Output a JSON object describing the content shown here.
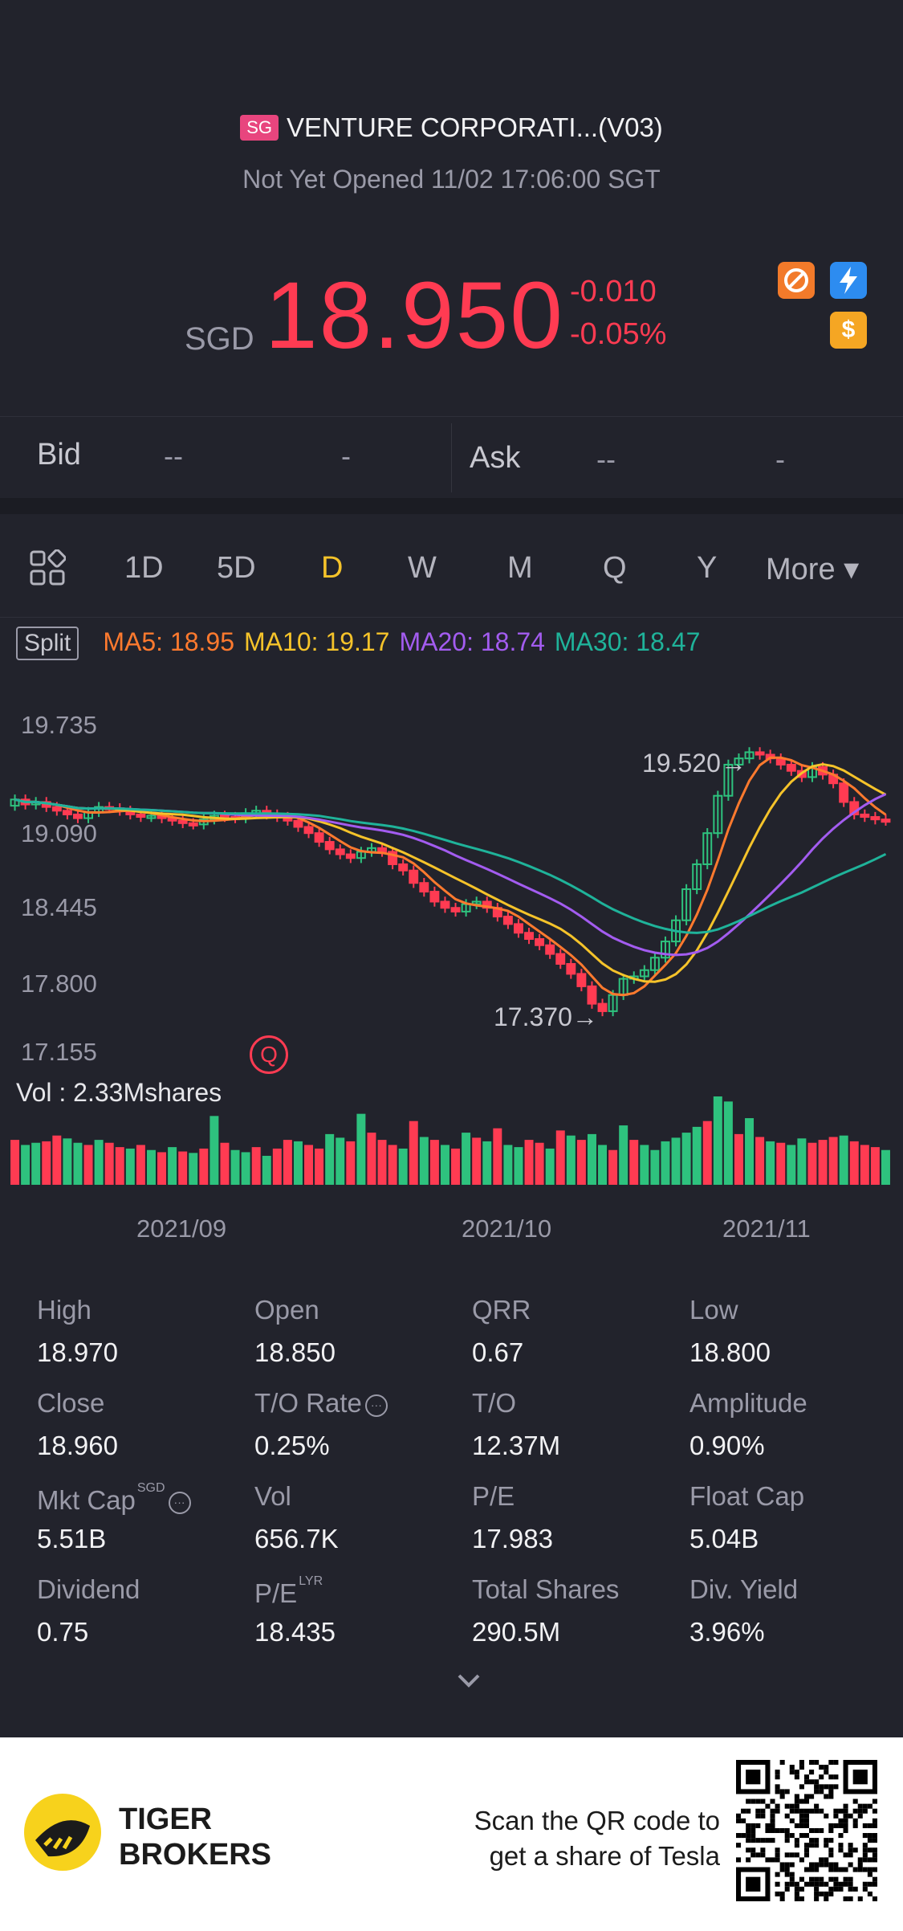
{
  "header": {
    "market_badge": "SG",
    "title": "VENTURE CORPORATI...(V03)",
    "status": "Not Yet Opened 11/02 17:06:00 SGT"
  },
  "quote": {
    "currency": "SGD",
    "price": "18.950",
    "change": "-0.010",
    "change_pct": "-0.05%",
    "colors": {
      "down": "#ff3b52",
      "up": "#2ec27e"
    }
  },
  "quote_icons": [
    {
      "name": "no-shorting-icon",
      "color": "#f27a2a"
    },
    {
      "name": "lightning-icon",
      "color": "#2d8cf0"
    },
    {
      "name": "dollar-icon",
      "color": "#f5a623",
      "glyph": "$"
    }
  ],
  "bid_ask": {
    "bid_label": "Bid",
    "bid_price": "--",
    "bid_size": "-",
    "ask_label": "Ask",
    "ask_price": "--",
    "ask_size": "-"
  },
  "period_tabs": {
    "items": [
      "1D",
      "5D",
      "D",
      "W",
      "M",
      "Q",
      "Y"
    ],
    "active": "D",
    "more_label": "More ▾"
  },
  "indicators": {
    "split_label": "Split",
    "ma5": "MA5: 18.95",
    "ma10": "MA10: 19.17",
    "ma20": "MA20: 18.74",
    "ma30": "MA30: 18.47",
    "colors": {
      "ma5": "#ff7a2e",
      "ma10": "#f5c32a",
      "ma20": "#a35cf0",
      "ma30": "#1fb39a"
    }
  },
  "chart_data": {
    "type": "candlestick",
    "y_ticks": [
      "19.735",
      "19.090",
      "18.445",
      "17.800",
      "17.155"
    ],
    "x_ticks": [
      "2021/09",
      "2021/10",
      "2021/11"
    ],
    "high_annotation": "19.520",
    "low_annotation": "17.370",
    "volume_label": "Vol  : 2.33Mshares",
    "event_marker": "Q",
    "ylim": [
      17.155,
      19.735
    ],
    "closes": [
      19.12,
      19.08,
      19.1,
      19.06,
      19.03,
      19.0,
      18.97,
      19.02,
      19.06,
      19.05,
      19.03,
      19.0,
      18.98,
      18.99,
      18.97,
      18.95,
      18.93,
      18.92,
      18.96,
      18.99,
      18.98,
      18.97,
      19.01,
      19.03,
      19.0,
      18.98,
      18.95,
      18.9,
      18.85,
      18.78,
      18.72,
      18.68,
      18.65,
      18.7,
      18.73,
      18.7,
      18.6,
      18.55,
      18.45,
      18.38,
      18.3,
      18.25,
      18.22,
      18.28,
      18.3,
      18.25,
      18.18,
      18.12,
      18.05,
      18.0,
      17.95,
      17.88,
      17.8,
      17.72,
      17.62,
      17.48,
      17.42,
      17.55,
      17.68,
      17.7,
      17.75,
      17.85,
      17.98,
      18.15,
      18.4,
      18.6,
      18.85,
      19.15,
      19.4,
      19.45,
      19.5,
      19.48,
      19.45,
      19.4,
      19.35,
      19.3,
      19.38,
      19.32,
      19.25,
      19.1,
      19.0,
      18.98,
      18.96,
      18.95
    ],
    "volume": [
      62,
      55,
      58,
      60,
      68,
      64,
      58,
      55,
      62,
      58,
      52,
      50,
      55,
      48,
      45,
      52,
      46,
      44,
      50,
      95,
      58,
      48,
      45,
      52,
      40,
      50,
      62,
      60,
      55,
      50,
      70,
      65,
      60,
      98,
      72,
      62,
      55,
      50,
      88,
      66,
      62,
      55,
      50,
      72,
      65,
      60,
      78,
      55,
      52,
      62,
      58,
      50,
      75,
      68,
      62,
      70,
      55,
      48,
      82,
      62,
      55,
      48,
      60,
      65,
      72,
      80,
      88,
      122,
      115,
      70,
      92,
      66,
      60,
      58,
      55,
      64,
      58,
      62,
      66,
      68,
      60,
      55,
      52,
      48
    ],
    "volume_up": [
      false,
      true,
      true,
      false,
      false,
      true,
      true,
      false,
      true,
      false,
      false,
      true,
      false,
      true,
      false,
      true,
      false,
      true,
      false,
      true,
      false,
      true,
      true,
      false,
      true,
      false,
      false,
      true,
      false,
      false,
      true,
      true,
      false,
      true,
      false,
      false,
      false,
      true,
      false,
      true,
      false,
      true,
      false,
      true,
      false,
      true,
      false,
      true,
      true,
      false,
      false,
      true,
      false,
      true,
      false,
      true,
      true,
      false,
      true,
      false,
      true,
      true,
      true,
      true,
      true,
      true,
      false,
      true,
      true,
      false,
      true,
      false,
      true,
      false,
      true,
      true,
      false,
      false,
      false,
      true,
      false,
      false,
      false,
      true
    ]
  },
  "stats": [
    {
      "label": "High",
      "value": "18.970"
    },
    {
      "label": "Open",
      "value": "18.850"
    },
    {
      "label": "QRR",
      "value": "0.67"
    },
    {
      "label": "Low",
      "value": "18.800"
    },
    {
      "label": "Close",
      "value": "18.960"
    },
    {
      "label": "T/O Rate",
      "value": "0.25%"
    },
    {
      "label": "T/O",
      "value": "12.37M"
    },
    {
      "label": "Amplitude",
      "value": "0.90%"
    },
    {
      "label": "Mkt Cap",
      "value": "5.51B",
      "sup": "SGD"
    },
    {
      "label": "Vol",
      "value": "656.7K"
    },
    {
      "label": "P/E",
      "value": "17.983"
    },
    {
      "label": "Float Cap",
      "value": "5.04B"
    },
    {
      "label": "Dividend",
      "value": "0.75"
    },
    {
      "label": "P/E",
      "value": "18.435",
      "sup": "LYR"
    },
    {
      "label": "Total Shares",
      "value": "290.5M"
    },
    {
      "label": "Div. Yield",
      "value": "3.96%"
    }
  ],
  "footer": {
    "brand_line1": "TIGER",
    "brand_line2": "BROKERS",
    "promo_line1": "Scan the QR code to",
    "promo_line2": "get a share of Tesla"
  }
}
